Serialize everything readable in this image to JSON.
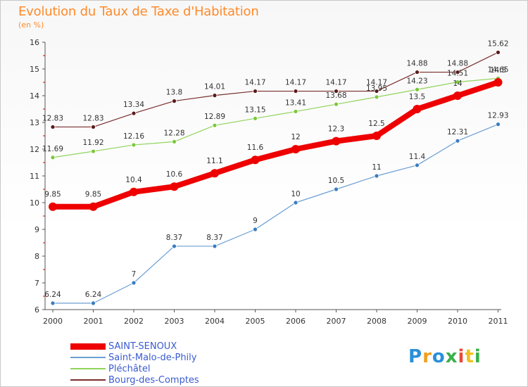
{
  "title": "Evolution du Taux de Taxe d'Habitation",
  "subtitle": "(en %)",
  "logo": {
    "text": "Proxiti",
    "colors": [
      "#2a8fd9",
      "#f0a020",
      "#2a8fd9",
      "#3ab04a",
      "#e84a3a",
      "#f0c020",
      "#3ab04a"
    ]
  },
  "chart_data": {
    "type": "line",
    "x": [
      "2000",
      "2001",
      "2002",
      "2003",
      "2004",
      "2005",
      "2006",
      "2007",
      "2008",
      "2009",
      "2010",
      "2011"
    ],
    "ylim": [
      6,
      16
    ],
    "yticks": [
      "6",
      "7",
      "8",
      "9",
      "10",
      "11",
      "12",
      "13",
      "14",
      "15",
      "16"
    ],
    "grid": false,
    "legend_position": "bottom-left",
    "series": [
      {
        "name": "SAINT-SENOUX",
        "color": "#ee0000",
        "values": [
          9.85,
          9.85,
          10.4,
          10.6,
          11.1,
          11.6,
          12,
          12.3,
          12.5,
          13.5,
          14,
          14.5
        ],
        "labels": [
          "9.85",
          "9.85",
          "10.4",
          "10.6",
          "11.1",
          "11.6",
          "12",
          "12.3",
          "12.5",
          "13.5",
          "14",
          "14.5"
        ]
      },
      {
        "name": "Saint-Malo-de-Phily",
        "color": "#6a9fd4",
        "values": [
          6.24,
          6.24,
          7,
          8.37,
          8.37,
          9,
          10,
          10.5,
          11,
          11.4,
          12.31,
          12.93
        ],
        "labels": [
          "6.24",
          "6.24",
          "7",
          "8.37",
          "8.37",
          "9",
          "10",
          "10.5",
          "11",
          "11.4",
          "12.31",
          "12.93"
        ]
      },
      {
        "name": "Pléchâtel",
        "color": "#8fd45a",
        "values": [
          11.69,
          11.92,
          12.16,
          12.28,
          12.89,
          13.15,
          13.41,
          13.68,
          13.95,
          14.23,
          14.51,
          14.65
        ],
        "labels": [
          "11.69",
          "11.92",
          "12.16",
          "12.28",
          "12.89",
          "13.15",
          "13.41",
          "13.68",
          "13.95",
          "14.23",
          "14.51",
          "14.65"
        ]
      },
      {
        "name": "Bourg-des-Comptes",
        "color": "#7a2e2e",
        "values": [
          12.83,
          12.83,
          13.34,
          13.8,
          14.01,
          14.17,
          14.17,
          14.17,
          14.17,
          14.88,
          14.88,
          15.62
        ],
        "labels": [
          "12.83",
          "12.83",
          "13.34",
          "13.8",
          "14.01",
          "14.17",
          "14.17",
          "14.17",
          "14.17",
          "14.88",
          "14.88",
          "15.62"
        ]
      }
    ]
  }
}
